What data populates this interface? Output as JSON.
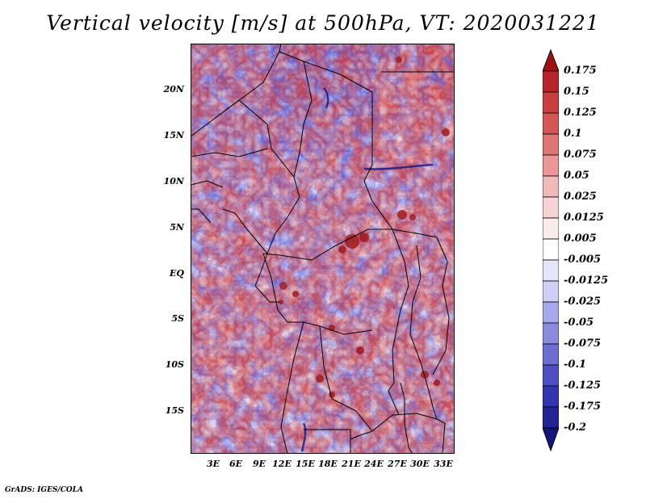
{
  "title": "Vertical velocity [m/s] at 500hPa, VT: 2020031221",
  "footer": "GrADS: IGES/COLA",
  "axes": {
    "lat_ticks": [
      "20N",
      "15N",
      "10N",
      "5N",
      "EQ",
      "5S",
      "10S",
      "15S"
    ],
    "lon_ticks": [
      "3E",
      "6E",
      "9E",
      "12E",
      "15E",
      "18E",
      "21E",
      "24E",
      "27E",
      "30E",
      "33E"
    ]
  },
  "colorbar": {
    "levels": [
      "0.175",
      "0.15",
      "0.125",
      "0.1",
      "0.075",
      "0.05",
      "0.025",
      "0.0125",
      "0.005",
      "-0.005",
      "-0.0125",
      "-0.025",
      "-0.05",
      "-0.075",
      "-0.1",
      "-0.125",
      "-0.175",
      "-0.2"
    ],
    "colors": [
      "#a00f14",
      "#b8242a",
      "#c93f3f",
      "#d65656",
      "#e07575",
      "#e99797",
      "#f2b9b9",
      "#f7d4d4",
      "#fbecec",
      "#ffffff",
      "#e6e6fa",
      "#cfcff3",
      "#a8a8ec",
      "#8b8bde",
      "#6e6ed2",
      "#4f4fc4",
      "#3434b0",
      "#232395",
      "#14147a"
    ]
  }
}
